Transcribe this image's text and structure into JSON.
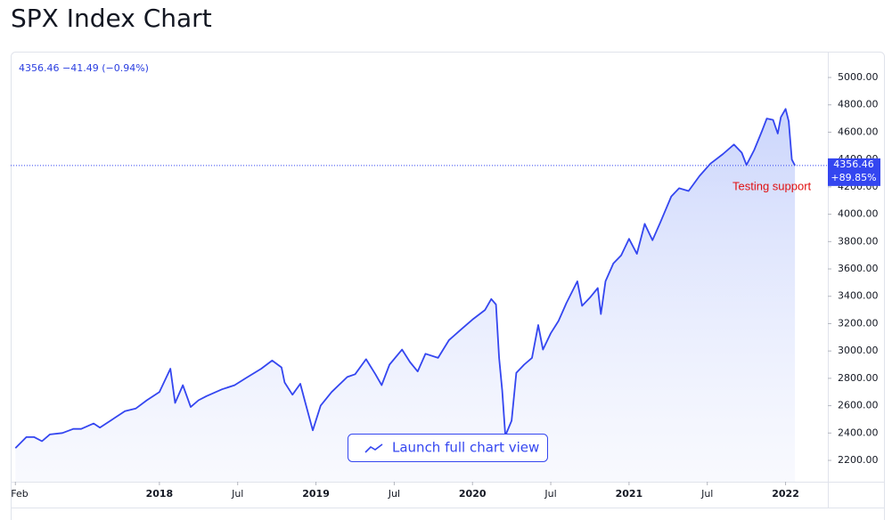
{
  "chart_data": {
    "type": "line",
    "title": "SPX Index Chart",
    "quote": "4356.46 −41.49 (−0.94%)",
    "price_tag": [
      "4356.46",
      "+89.85%"
    ],
    "annotation": "Testing support",
    "button": "Launch full chart view",
    "color": "#3446f0",
    "x": [
      2017.08,
      2017.15,
      2017.2,
      2017.25,
      2017.3,
      2017.38,
      2017.45,
      2017.5,
      2017.58,
      2017.62,
      2017.7,
      2017.78,
      2017.85,
      2017.92,
      2018.0,
      2018.07,
      2018.1,
      2018.15,
      2018.2,
      2018.25,
      2018.3,
      2018.4,
      2018.48,
      2018.55,
      2018.65,
      2018.72,
      2018.78,
      2018.8,
      2018.85,
      2018.9,
      2018.93,
      2018.98,
      2019.03,
      2019.1,
      2019.2,
      2019.25,
      2019.32,
      2019.38,
      2019.42,
      2019.47,
      2019.55,
      2019.6,
      2019.65,
      2019.7,
      2019.78,
      2019.85,
      2019.93,
      2020.0,
      2020.08,
      2020.12,
      2020.15,
      2020.17,
      2020.19,
      2020.21,
      2020.25,
      2020.28,
      2020.33,
      2020.38,
      2020.42,
      2020.45,
      2020.5,
      2020.55,
      2020.6,
      2020.67,
      2020.7,
      2020.75,
      2020.8,
      2020.82,
      2020.85,
      2020.9,
      2020.95,
      2021.0,
      2021.05,
      2021.1,
      2021.15,
      2021.2,
      2021.27,
      2021.32,
      2021.38,
      2021.45,
      2021.52,
      2021.6,
      2021.67,
      2021.72,
      2021.75,
      2021.8,
      2021.85,
      2021.88,
      2021.92,
      2021.95,
      2021.97,
      2022.0,
      2022.02,
      2022.04,
      2022.06
    ],
    "values": [
      2290,
      2370,
      2370,
      2340,
      2390,
      2400,
      2430,
      2430,
      2470,
      2440,
      2500,
      2560,
      2580,
      2640,
      2700,
      2870,
      2620,
      2750,
      2590,
      2640,
      2670,
      2720,
      2750,
      2800,
      2870,
      2930,
      2880,
      2770,
      2680,
      2760,
      2630,
      2420,
      2600,
      2700,
      2810,
      2830,
      2940,
      2830,
      2750,
      2900,
      3010,
      2920,
      2850,
      2980,
      2950,
      3080,
      3160,
      3230,
      3300,
      3380,
      3340,
      2950,
      2710,
      2380,
      2490,
      2840,
      2900,
      2950,
      3190,
      3010,
      3130,
      3220,
      3350,
      3510,
      3330,
      3390,
      3460,
      3270,
      3510,
      3640,
      3700,
      3820,
      3710,
      3930,
      3810,
      3940,
      4130,
      4190,
      4170,
      4280,
      4370,
      4440,
      4510,
      4450,
      4360,
      4470,
      4610,
      4700,
      4690,
      4590,
      4710,
      4770,
      4680,
      4400,
      4356.46
    ],
    "xlim": [
      2017.05,
      2022.27
    ],
    "ylim": [
      2044,
      5189
    ],
    "xticks": [
      {
        "value": 2017.08,
        "label": "Feb"
      },
      2018,
      {
        "value": 2018.5,
        "label": "Jul"
      },
      2019,
      {
        "value": 2019.5,
        "label": "Jul"
      },
      2020,
      {
        "value": 2020.5,
        "label": "Jul"
      },
      2021,
      {
        "value": 2021.5,
        "label": "Jul"
      },
      2022
    ],
    "yticks": [
      {
        "value": 2200,
        "label": "2200.00"
      },
      {
        "value": 2400,
        "label": "2400.00"
      },
      {
        "value": 2600,
        "label": "2600.00"
      },
      {
        "value": 2800,
        "label": "2800.00"
      },
      {
        "value": 3000,
        "label": "3000.00"
      },
      {
        "value": 3200,
        "label": "3200.00"
      },
      {
        "value": 3400,
        "label": "3400.00"
      },
      {
        "value": 3600,
        "label": "3600.00"
      },
      {
        "value": 3800,
        "label": "3800.00"
      },
      {
        "value": 4000,
        "label": "4000.00"
      },
      {
        "value": 4200,
        "label": "4200.00"
      },
      {
        "value": 4400,
        "label": "4400.00"
      },
      {
        "value": 4600,
        "label": "4600.00"
      },
      {
        "value": 4800,
        "label": "4800.00"
      },
      {
        "value": 5000,
        "label": "5000.00"
      }
    ]
  }
}
